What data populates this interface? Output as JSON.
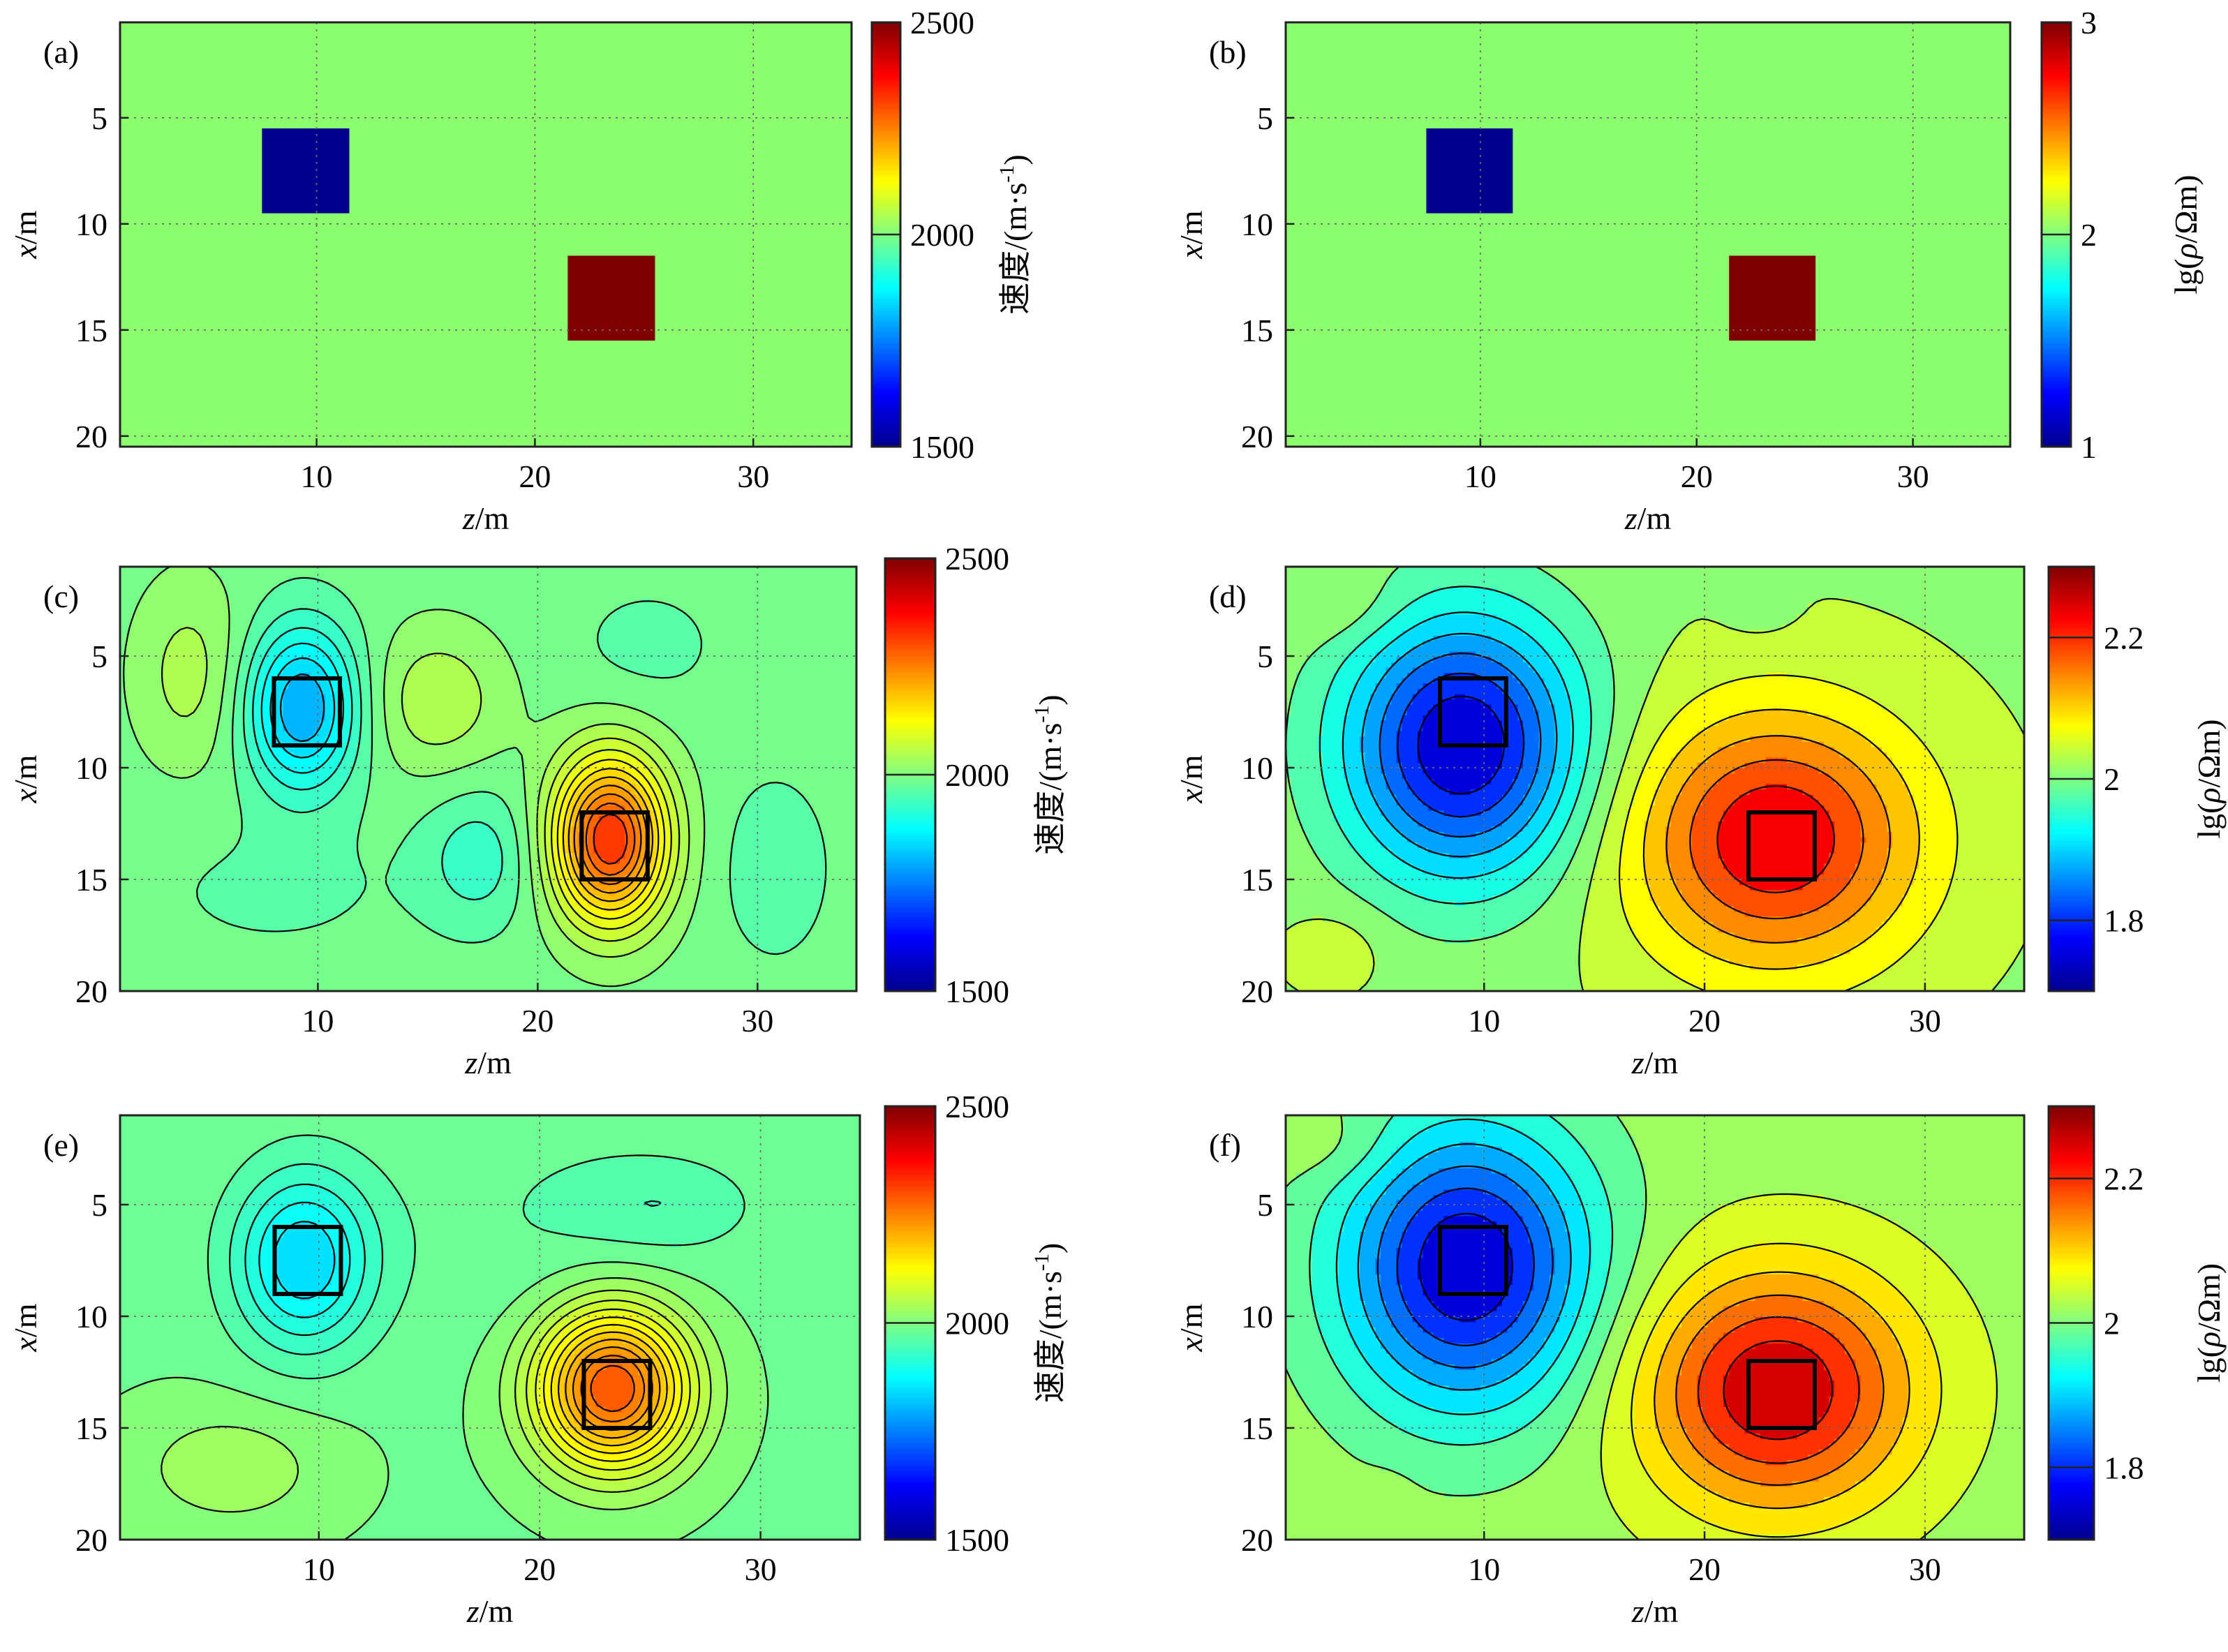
{
  "figure": {
    "colors": {
      "background": "#8cff6e",
      "anomaly_low": "#00008f",
      "anomaly_high": "#7f0000",
      "grid": "#6b6b6b",
      "box": "#000000"
    },
    "colorbar_stops": [
      "#00008f",
      "#0000ff",
      "#0080ff",
      "#00ffff",
      "#80ff80",
      "#ffff00",
      "#ff8000",
      "#ff0000",
      "#800000"
    ]
  },
  "chart_data": [
    {
      "panel_label": "(a)",
      "type": "heatmap",
      "xlabel": "z/m",
      "ylabel": "x/m",
      "xlim": [
        1,
        34.5
      ],
      "ylim": [
        0.5,
        20.5
      ],
      "xticks": [
        10,
        20,
        30
      ],
      "yticks": [
        5,
        10,
        15,
        20
      ],
      "grid": true,
      "colorbar": {
        "label": "速度/(m·s-1)",
        "range": [
          1500,
          2500
        ],
        "ticks": [
          1500,
          2000,
          2500
        ]
      },
      "background_value": 2000,
      "blocks": [
        {
          "z": [
            7.5,
            11.5
          ],
          "x": [
            5.5,
            9.5
          ],
          "value": 1500
        },
        {
          "z": [
            21.5,
            25.5
          ],
          "x": [
            11.5,
            15.5
          ],
          "value": 2500
        }
      ]
    },
    {
      "panel_label": "(b)",
      "type": "heatmap",
      "xlabel": "z/m",
      "ylabel": "x/m",
      "xlim": [
        1,
        34.5
      ],
      "ylim": [
        0.5,
        20.5
      ],
      "xticks": [
        10,
        20,
        30
      ],
      "yticks": [
        5,
        10,
        15,
        20
      ],
      "grid": true,
      "colorbar": {
        "label": "lg(ρ/Ωm)",
        "range": [
          1,
          3
        ],
        "ticks": [
          1,
          2,
          3
        ]
      },
      "background_value": 2,
      "blocks": [
        {
          "z": [
            7.5,
            11.5
          ],
          "x": [
            5.5,
            9.5
          ],
          "value": 1
        },
        {
          "z": [
            21.5,
            25.5
          ],
          "x": [
            11.5,
            15.5
          ],
          "value": 3
        }
      ]
    },
    {
      "panel_label": "(c)",
      "type": "heatmap",
      "xlabel": "z/m",
      "ylabel": "x/m",
      "xlim": [
        1,
        34.5
      ],
      "ylim": [
        1,
        20
      ],
      "xticks": [
        10,
        20,
        30
      ],
      "yticks": [
        5,
        10,
        15,
        20
      ],
      "grid": true,
      "colorbar": {
        "label": "速度/(m·s-1)",
        "range": [
          1500,
          2500
        ],
        "ticks": [
          1500,
          2000,
          2500
        ]
      },
      "contours": 18,
      "field": {
        "base": 1990,
        "anomalies": [
          {
            "z": 9.3,
            "x": 7.3,
            "amp": -190,
            "sz": 1.8,
            "sx": 2.6
          },
          {
            "z": 23.3,
            "x": 13.2,
            "amp": 330,
            "sz": 1.8,
            "sx": 2.6
          },
          {
            "z": 4.2,
            "x": 5.8,
            "amp": 55,
            "sz": 1.8,
            "sx": 3.0
          },
          {
            "z": 15.4,
            "x": 7.0,
            "amp": 65,
            "sz": 2.2,
            "sx": 2.3
          },
          {
            "z": 17.3,
            "x": 14.0,
            "amp": -60,
            "sz": 1.8,
            "sx": 2.2
          },
          {
            "z": 30.8,
            "x": 14.5,
            "amp": -35,
            "sz": 1.8,
            "sx": 3.0
          },
          {
            "z": 25.0,
            "x": 4.5,
            "amp": -25,
            "sz": 2.5,
            "sx": 2.0
          },
          {
            "z": 8.0,
            "x": 15.5,
            "amp": -20,
            "sz": 5.0,
            "sx": 2.5
          }
        ]
      },
      "model_boxes": [
        {
          "z": [
            8,
            11
          ],
          "x": [
            6,
            9
          ]
        },
        {
          "z": [
            22,
            25
          ],
          "x": [
            12,
            15
          ]
        }
      ]
    },
    {
      "panel_label": "(d)",
      "type": "heatmap",
      "xlabel": "z/m",
      "ylabel": "x/m",
      "xlim": [
        1,
        34.5
      ],
      "ylim": [
        1,
        20
      ],
      "xticks": [
        10,
        20,
        30
      ],
      "yticks": [
        5,
        10,
        15,
        20
      ],
      "grid": true,
      "colorbar": {
        "label": "lg(ρ/Ωm)",
        "range": [
          1.7,
          2.3
        ],
        "ticks": [
          1.8,
          2,
          2.2
        ]
      },
      "contours": 14,
      "field": {
        "base": 2.02,
        "anomalies": [
          {
            "z": 9.0,
            "x": 9.0,
            "amp": -0.27,
            "sz": 3.8,
            "sx": 4.2
          },
          {
            "z": 23.2,
            "x": 13.2,
            "amp": 0.21,
            "sz": 4.5,
            "sx": 4.0
          },
          {
            "z": 3.3,
            "x": 18.1,
            "amp": 0.03,
            "sz": 1.6,
            "sx": 1.3
          },
          {
            "z": 3.5,
            "x": 2.8,
            "amp": 0.025,
            "sz": 2.0,
            "sx": 1.2
          },
          {
            "z": 22.5,
            "x": 3.2,
            "amp": -0.015,
            "sz": 1.2,
            "sx": 0.8
          }
        ]
      },
      "model_boxes": [
        {
          "z": [
            8,
            11
          ],
          "x": [
            6,
            9
          ]
        },
        {
          "z": [
            22,
            25
          ],
          "x": [
            12,
            15
          ]
        }
      ]
    },
    {
      "panel_label": "(e)",
      "type": "heatmap",
      "xlabel": "z/m",
      "ylabel": "x/m",
      "xlim": [
        1,
        34.5
      ],
      "ylim": [
        1,
        20
      ],
      "xticks": [
        10,
        20,
        30
      ],
      "yticks": [
        5,
        10,
        15,
        20
      ],
      "grid": true,
      "colorbar": {
        "label": "速度/(m·s-1)",
        "range": [
          1500,
          2500
        ],
        "ticks": [
          1500,
          2000,
          2500
        ]
      },
      "contours": 18,
      "field": {
        "base": 1990,
        "anomalies": [
          {
            "z": 9.3,
            "x": 7.5,
            "amp": -140,
            "sz": 2.2,
            "sx": 2.8
          },
          {
            "z": 23.3,
            "x": 13.2,
            "amp": 300,
            "sz": 2.4,
            "sx": 2.5
          },
          {
            "z": 6.0,
            "x": 16.8,
            "amp": 45,
            "sz": 3.2,
            "sx": 2.0
          },
          {
            "z": 25.5,
            "x": 5.0,
            "amp": -35,
            "sz": 3.0,
            "sx": 1.5
          },
          {
            "z": 20.0,
            "x": 6.0,
            "amp": -18,
            "sz": 6.0,
            "sx": 4.0
          }
        ]
      },
      "model_boxes": [
        {
          "z": [
            8,
            11
          ],
          "x": [
            6,
            9
          ]
        },
        {
          "z": [
            22,
            25
          ],
          "x": [
            12,
            15
          ]
        }
      ]
    },
    {
      "panel_label": "(f)",
      "type": "heatmap",
      "xlabel": "z/m",
      "ylabel": "x/m",
      "xlim": [
        1,
        34.5
      ],
      "ylim": [
        1,
        20
      ],
      "xticks": [
        10,
        20,
        30
      ],
      "yticks": [
        5,
        10,
        15,
        20
      ],
      "grid": true,
      "colorbar": {
        "label": "lg(ρ/Ωm)",
        "range": [
          1.7,
          2.3
        ],
        "ticks": [
          1.8,
          2,
          2.2
        ]
      },
      "contours": 14,
      "field": {
        "base": 2.02,
        "anomalies": [
          {
            "z": 9.2,
            "x": 7.8,
            "amp": -0.27,
            "sz": 4.0,
            "sx": 4.5
          },
          {
            "z": 23.3,
            "x": 13.3,
            "amp": 0.23,
            "sz": 4.3,
            "sx": 3.8
          },
          {
            "z": 3.5,
            "x": 2.5,
            "amp": 0.025,
            "sz": 2.0,
            "sx": 1.2
          },
          {
            "z": 5.5,
            "x": 18.3,
            "amp": 0.02,
            "sz": 0.8,
            "sx": 0.8
          }
        ]
      },
      "model_boxes": [
        {
          "z": [
            8,
            11
          ],
          "x": [
            6,
            9
          ]
        },
        {
          "z": [
            22,
            25
          ],
          "x": [
            12,
            15
          ]
        }
      ]
    }
  ]
}
